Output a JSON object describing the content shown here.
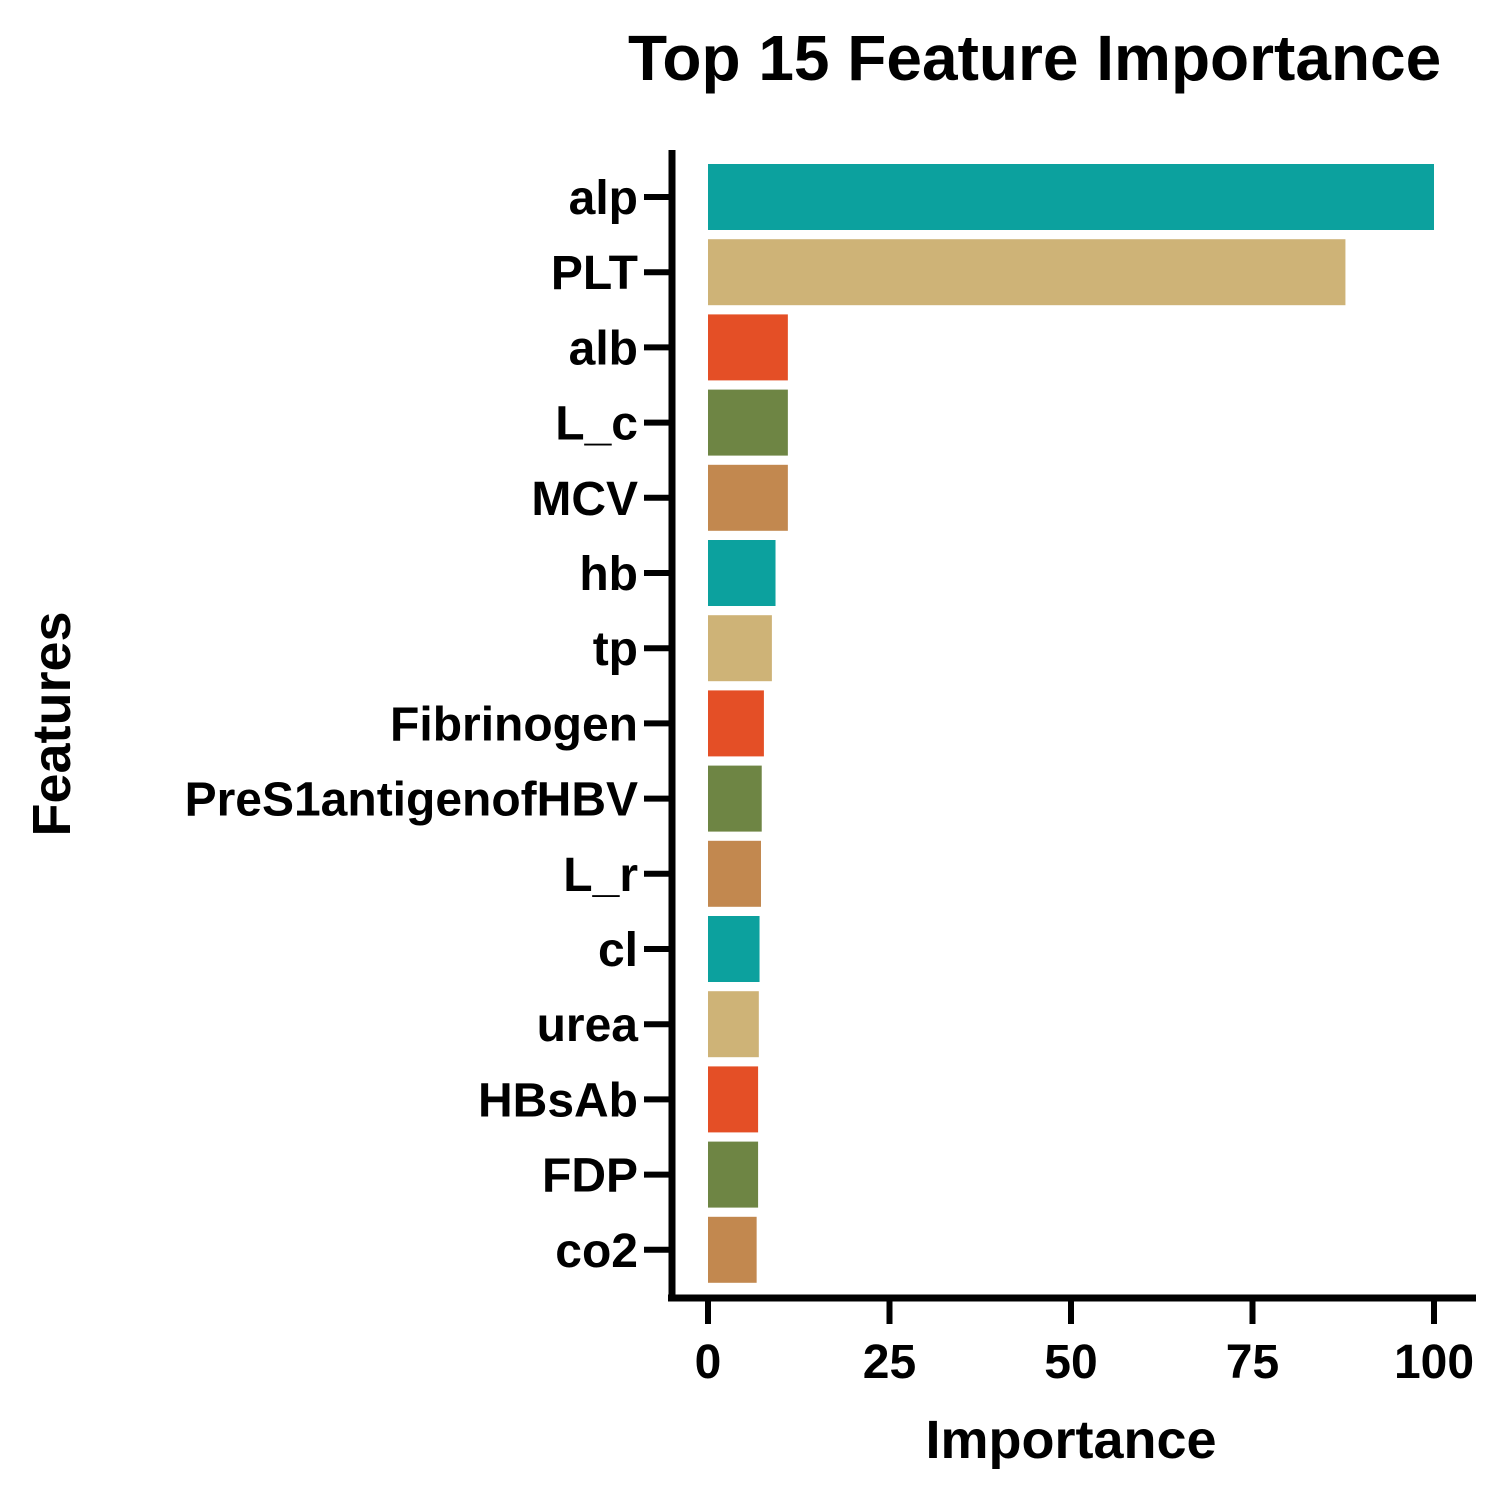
{
  "chart_data": {
    "type": "bar",
    "orientation": "horizontal",
    "title": "Top 15 Feature Importance",
    "xlabel": "Importance",
    "ylabel": "Features",
    "xlim": [
      0,
      105
    ],
    "xticks": [
      0,
      25,
      50,
      75,
      100
    ],
    "grid": false,
    "legend": "none",
    "categories": [
      "alp",
      "PLT",
      "alb",
      "L_c",
      "MCV",
      "hb",
      "tp",
      "Fibrinogen",
      "PreS1antigenofHBV",
      "L_r",
      "cl",
      "urea",
      "HBsAb",
      "FDP",
      "co2"
    ],
    "values": [
      100,
      87.8,
      11.0,
      11.0,
      11.0,
      9.3,
      8.8,
      7.7,
      7.4,
      7.3,
      7.1,
      7.0,
      6.9,
      6.9,
      6.7
    ],
    "colors": [
      "#0ca19e",
      "#ceb377",
      "#e44f26",
      "#6e8544",
      "#c2884f",
      "#0ca19e",
      "#ceb377",
      "#e44f26",
      "#6e8544",
      "#c2884f",
      "#0ca19e",
      "#ceb377",
      "#e44f26",
      "#6e8544",
      "#c2884f"
    ]
  }
}
